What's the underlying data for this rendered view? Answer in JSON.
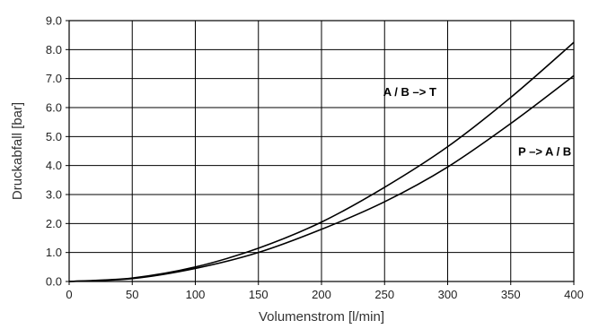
{
  "chart_data": {
    "type": "line",
    "title": "",
    "xlabel": "Volumenstrom [l/min]",
    "ylabel": "Druckabfall [bar]",
    "xlim": [
      0,
      400
    ],
    "ylim": [
      0,
      9
    ],
    "x_ticks": [
      "0",
      "50",
      "100",
      "150",
      "200",
      "250",
      "300",
      "350",
      "400"
    ],
    "y_ticks": [
      "0.0",
      "1.0",
      "2.0",
      "3.0",
      "4.0",
      "5.0",
      "6.0",
      "7.0",
      "8.0",
      "9.0"
    ],
    "grid": true,
    "x": [
      0,
      50,
      100,
      150,
      200,
      250,
      300,
      350,
      400
    ],
    "series": [
      {
        "name": "A / B –> T",
        "values": [
          0,
          0.12,
          0.5,
          1.15,
          2.05,
          3.25,
          4.65,
          6.35,
          8.25
        ]
      },
      {
        "name": "P –> A / B",
        "values": [
          0,
          0.1,
          0.45,
          1.0,
          1.8,
          2.75,
          3.95,
          5.45,
          7.1
        ]
      }
    ]
  }
}
